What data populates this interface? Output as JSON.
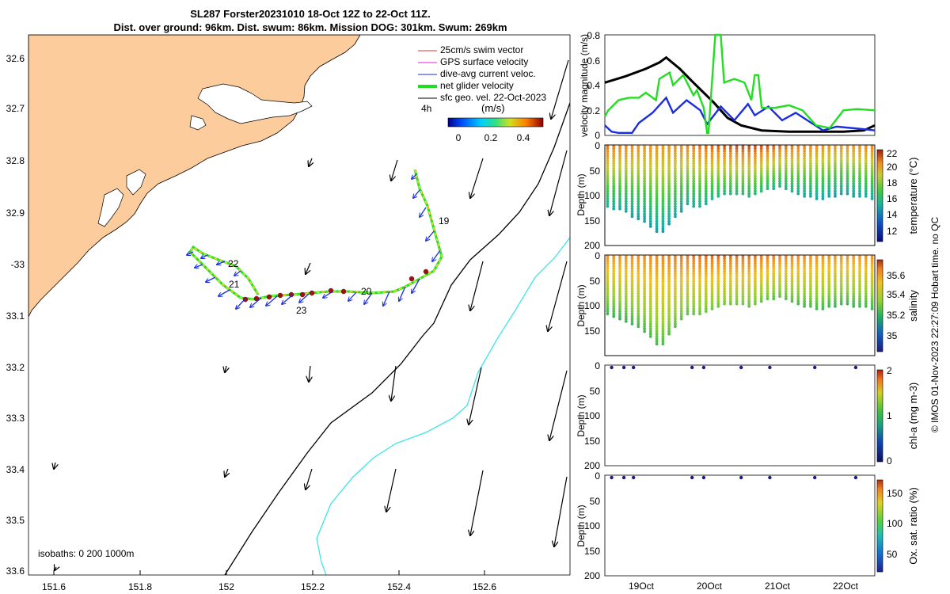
{
  "figure": {
    "title_line1": "SL287 Forster20231010 18-Oct 12Z to 22-Oct 11Z.",
    "title_line2": "Dist. over ground: 96km. Dist. swum: 86km. Mission DOG: 301km. Swum: 269km",
    "credit": "© IMOS 01-Nov-2023 22:27:09 Hobart time. no QC"
  },
  "map": {
    "legend": [
      {
        "label": "25cm/s swim vector",
        "color": "#e03030"
      },
      {
        "label": "GPS surface velocity",
        "color": "#e020e0"
      },
      {
        "label": "dive-avg current veloc.",
        "color": "#1a2ee0"
      },
      {
        "label": "net glider velocity",
        "color": "#22dd22"
      },
      {
        "label": "sfc geo. vel. 22-Oct-2023",
        "color": "#000000"
      }
    ],
    "time_label": "4h",
    "colorbar": {
      "unit": "(m/s)",
      "ticks": [
        "0",
        "0.2",
        "0.4"
      ]
    },
    "isobaths_label": "isobaths: 0   200  1000m",
    "lon_ticks": [
      "151.6",
      "151.8",
      "152",
      "152.2",
      "152.4",
      "152.6"
    ],
    "lat_ticks": [
      "32.6",
      "32.7",
      "32.8",
      "32.9",
      "-33",
      "33.1",
      "33.2",
      "33.3",
      "33.4",
      "33.5",
      "33.6"
    ],
    "day_labels": [
      "19",
      "20",
      "21",
      "22",
      "23"
    ],
    "land_color": "#fccc9c",
    "isobath_200_color": "#000000",
    "isobath_1000_color": "#3ee6e6"
  },
  "panels": {
    "x_ticks": [
      "19Oct",
      "20Oct",
      "21Oct",
      "22Oct"
    ],
    "velocity": {
      "ylabel": "velocity magnitude (m/s)",
      "yticks": [
        "0",
        "0.2",
        "0.4",
        "0.6",
        "0.8"
      ]
    },
    "temperature": {
      "ylabel": "Depth (m)",
      "cblabel": "temperature (°C)",
      "yticks": [
        "50",
        "100",
        "150",
        "200"
      ],
      "cbticks": [
        "12",
        "14",
        "16",
        "18",
        "20",
        "22"
      ]
    },
    "salinity": {
      "ylabel": "Depth (m)",
      "cblabel": "salinity",
      "yticks": [
        "50",
        "100",
        "150",
        "200"
      ],
      "cbticks": [
        "35",
        "35.2",
        "35.4",
        "35.6"
      ]
    },
    "chla": {
      "ylabel": "Depth (m)",
      "cblabel": "chl-a (mg m-3)",
      "yticks": [
        "0",
        "50",
        "100",
        "150",
        "200"
      ],
      "cbticks": [
        "0",
        "1",
        "2"
      ]
    },
    "oxygen": {
      "ylabel": "Depth (m)",
      "cblabel": "Ox. sat. ratio (%)",
      "yticks": [
        "0",
        "50",
        "100",
        "150",
        "200"
      ],
      "cbticks": [
        "50",
        "100",
        "150"
      ]
    }
  },
  "chart_data": [
    {
      "type": "line",
      "title": "velocity magnitude",
      "ylabel": "velocity magnitude (m/s)",
      "xlim_days": [
        18.5,
        22.46
      ],
      "ylim": [
        0,
        0.8
      ],
      "x_ticks": [
        "19Oct",
        "20Oct",
        "21Oct",
        "22Oct"
      ],
      "series": [
        {
          "name": "black",
          "color": "#000000",
          "x": [
            18.5,
            18.8,
            19.1,
            19.3,
            19.4,
            19.6,
            19.8,
            20.1,
            20.3,
            20.5,
            20.8,
            21.2,
            21.6,
            22.0,
            22.3,
            22.46
          ],
          "y": [
            0.42,
            0.47,
            0.53,
            0.58,
            0.62,
            0.53,
            0.42,
            0.26,
            0.14,
            0.08,
            0.04,
            0.03,
            0.03,
            0.03,
            0.04,
            0.08
          ]
        },
        {
          "name": "blue",
          "color": "#1a2ee0",
          "x": [
            18.5,
            18.6,
            18.7,
            18.9,
            19.0,
            19.2,
            19.4,
            19.5,
            19.7,
            19.9,
            20.0,
            20.2,
            20.4,
            20.6,
            20.7,
            20.9,
            21.1,
            21.3,
            21.5,
            21.7,
            21.9,
            22.1,
            22.3,
            22.46
          ],
          "y": [
            0.08,
            0.03,
            0.02,
            0.02,
            0.1,
            0.18,
            0.3,
            0.18,
            0.28,
            0.2,
            0.09,
            0.23,
            0.12,
            0.25,
            0.16,
            0.23,
            0.12,
            0.18,
            0.11,
            0.04,
            0.07,
            0.06,
            0.05,
            0.04
          ]
        },
        {
          "name": "green",
          "color": "#22dd22",
          "x": [
            18.5,
            18.55,
            18.7,
            18.85,
            19.0,
            19.1,
            19.25,
            19.3,
            19.45,
            19.5,
            19.65,
            19.8,
            19.85,
            19.95,
            20.0,
            20.02,
            20.12,
            20.2,
            20.25,
            20.4,
            20.55,
            20.65,
            20.7,
            20.75,
            20.8,
            21.0,
            21.2,
            21.4,
            21.6,
            21.8,
            22.0,
            22.2,
            22.46
          ],
          "y": [
            0.15,
            0.2,
            0.28,
            0.3,
            0.3,
            0.34,
            0.28,
            0.45,
            0.5,
            0.4,
            0.48,
            0.32,
            0.36,
            0.22,
            0.02,
            0.02,
            0.8,
            0.8,
            0.42,
            0.45,
            0.42,
            0.28,
            0.48,
            0.48,
            0.22,
            0.22,
            0.24,
            0.2,
            0.08,
            0.06,
            0.2,
            0.21,
            0.2
          ]
        }
      ]
    },
    {
      "type": "heatmap",
      "title": "temperature section",
      "ylabel": "Depth (m)",
      "colorbar_label": "temperature (°C)",
      "ylim": [
        200,
        0
      ],
      "clim": [
        11,
        22.5
      ],
      "profile_max_depth_m": [
        125,
        130,
        145,
        160,
        182,
        150,
        120,
        125,
        108,
        100,
        100,
        103,
        90,
        85,
        96,
        104,
        112,
        104,
        100,
        105,
        108
      ],
      "summary": "warm (20-22°C) near surface, cooling to 14-16°C near 120-150 m"
    },
    {
      "type": "heatmap",
      "title": "salinity section",
      "ylabel": "Depth (m)",
      "colorbar_label": "salinity",
      "ylim": [
        200,
        0
      ],
      "clim": [
        34.85,
        35.75
      ],
      "profile_max_depth_m": [
        120,
        128,
        140,
        158,
        185,
        148,
        118,
        120,
        108,
        100,
        100,
        103,
        90,
        85,
        96,
        104,
        112,
        104,
        100,
        105,
        108
      ],
      "summary": "high salinity (~35.6) near surface, ~35.2 at depth"
    },
    {
      "type": "scatter",
      "title": "chl-a surface samples",
      "ylabel": "Depth (m)",
      "colorbar_label": "chl-a (mg m-3)",
      "ylim": [
        200,
        0
      ],
      "clim": [
        0,
        2
      ],
      "x_days": [
        18.6,
        18.78,
        18.92,
        19.78,
        19.95,
        20.5,
        20.92,
        21.58,
        22.18
      ],
      "depth_m": [
        0,
        0,
        0,
        0,
        0,
        0,
        0,
        0,
        0
      ]
    },
    {
      "type": "scatter",
      "title": "oxygen saturation surface samples",
      "ylabel": "Depth (m)",
      "colorbar_label": "Ox. sat. ratio (%)",
      "ylim": [
        200,
        0
      ],
      "clim": [
        25,
        175
      ],
      "x_days": [
        18.6,
        18.78,
        18.92,
        19.78,
        19.95,
        20.5,
        20.92,
        21.58,
        22.18
      ],
      "depth_m": [
        0,
        0,
        0,
        0,
        0,
        0,
        0,
        0,
        0
      ]
    }
  ]
}
